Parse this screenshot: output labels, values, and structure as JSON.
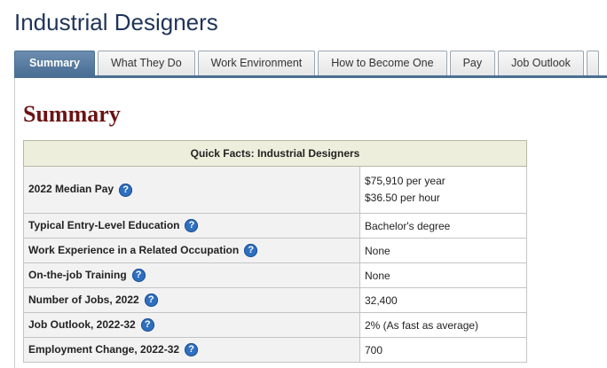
{
  "page": {
    "title": "Industrial Designers"
  },
  "tabs": [
    {
      "label": "Summary",
      "active": true
    },
    {
      "label": "What They Do"
    },
    {
      "label": "Work Environment"
    },
    {
      "label": "How to Become One"
    },
    {
      "label": "Pay"
    },
    {
      "label": "Job Outlook"
    }
  ],
  "summary": {
    "heading": "Summary",
    "table_title": "Quick Facts: Industrial Designers",
    "help_glyph": "?",
    "rows": [
      {
        "label": "2022 Median Pay",
        "value": "$75,910 per year",
        "value2": "$36.50 per hour"
      },
      {
        "label": "Typical Entry-Level Education",
        "value": "Bachelor's degree"
      },
      {
        "label": "Work Experience in a Related Occupation",
        "value": "None"
      },
      {
        "label": "On-the-job Training",
        "value": "None"
      },
      {
        "label": "Number of Jobs, 2022",
        "value": "32,400"
      },
      {
        "label": "Job Outlook, 2022-32",
        "value": "2% (As fast as average)"
      },
      {
        "label": "Employment Change, 2022-32",
        "value": "700"
      }
    ]
  }
}
